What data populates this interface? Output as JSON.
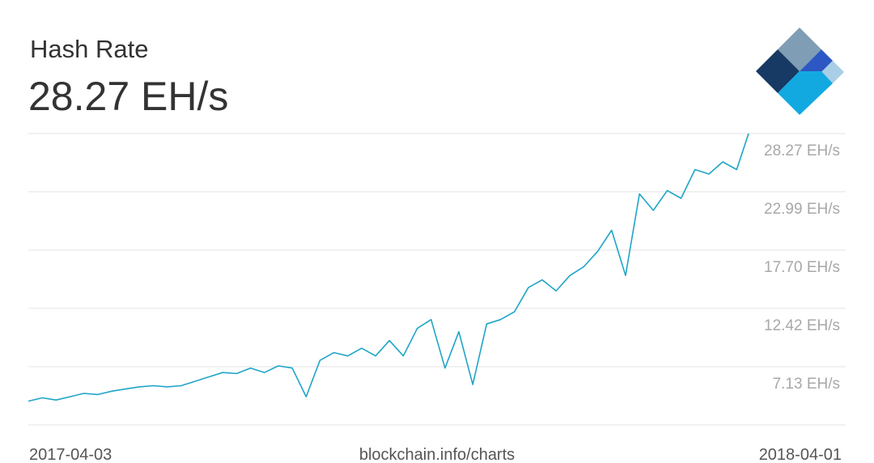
{
  "chart_data": {
    "type": "line",
    "title": "Hash Rate",
    "subtitle": "28.27 EH/s",
    "source": "blockchain.info/charts",
    "color": "#1fa5c7",
    "grid": true,
    "xlim": [
      "2017-04-03",
      "2018-04-01"
    ],
    "ylim": [
      1.84,
      28.27
    ],
    "yticks": [
      {
        "value": 7.13,
        "label": "7.13 EH/s"
      },
      {
        "value": 12.42,
        "label": "12.42 EH/s"
      },
      {
        "value": 17.7,
        "label": "17.70 EH/s"
      },
      {
        "value": 22.99,
        "label": "22.99 EH/s"
      },
      {
        "value": 28.27,
        "label": "28.27 EH/s"
      }
    ],
    "x": [
      "2017-04-03",
      "2017-04-10",
      "2017-04-17",
      "2017-04-24",
      "2017-05-01",
      "2017-05-08",
      "2017-05-15",
      "2017-05-22",
      "2017-05-29",
      "2017-06-05",
      "2017-06-12",
      "2017-06-19",
      "2017-06-26",
      "2017-07-03",
      "2017-07-10",
      "2017-07-17",
      "2017-07-24",
      "2017-07-31",
      "2017-08-07",
      "2017-08-14",
      "2017-08-21",
      "2017-08-28",
      "2017-09-04",
      "2017-09-11",
      "2017-09-18",
      "2017-09-25",
      "2017-10-02",
      "2017-10-09",
      "2017-10-16",
      "2017-10-23",
      "2017-10-30",
      "2017-11-06",
      "2017-11-13",
      "2017-11-20",
      "2017-11-27",
      "2017-12-04",
      "2017-12-11",
      "2017-12-18",
      "2017-12-25",
      "2018-01-01",
      "2018-01-08",
      "2018-01-15",
      "2018-01-22",
      "2018-01-29",
      "2018-02-05",
      "2018-02-12",
      "2018-02-19",
      "2018-02-26",
      "2018-03-05",
      "2018-03-12",
      "2018-03-19",
      "2018-03-26",
      "2018-04-01"
    ],
    "values": [
      4.0,
      4.3,
      4.1,
      4.4,
      4.7,
      4.6,
      4.9,
      5.1,
      5.3,
      5.4,
      5.3,
      5.4,
      5.8,
      6.2,
      6.6,
      6.5,
      7.0,
      6.6,
      7.2,
      7.0,
      4.4,
      7.7,
      8.4,
      8.1,
      8.8,
      8.1,
      9.5,
      8.1,
      10.6,
      11.4,
      7.0,
      10.3,
      5.5,
      11.0,
      11.4,
      12.1,
      14.3,
      15.0,
      14.0,
      15.4,
      16.2,
      17.6,
      19.5,
      15.4,
      22.8,
      21.3,
      23.1,
      22.4,
      25.0,
      24.6,
      25.7,
      25.0,
      28.27
    ]
  }
}
